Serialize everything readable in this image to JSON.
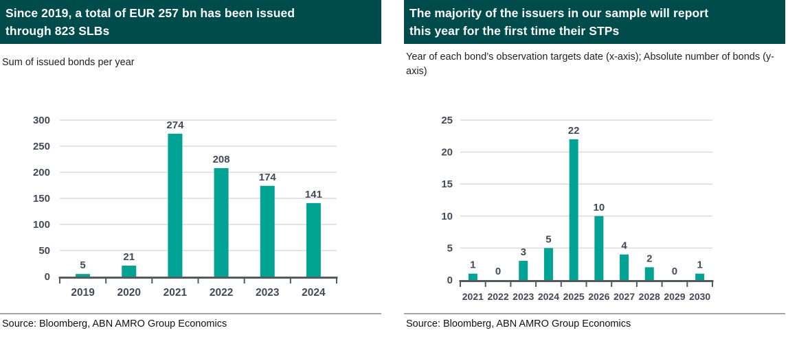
{
  "colors": {
    "header_bg": "#004C4C",
    "header_text": "#FFFFFF",
    "bar": "#00A394",
    "axis": "#55585C",
    "grid": "#DBDBDB",
    "tick_label": "#404A59",
    "body_text": "#1F1F1F",
    "divider": "#A6A6A6"
  },
  "chart_data": [
    {
      "type": "bar",
      "title": "Since 2019, a total of EUR 257 bn has been issued through 823 SLBs",
      "title_lines": [
        "Since 2019, a total of EUR 257 bn has been issued",
        "through 823 SLBs"
      ],
      "subtitle": "Sum of issued bonds per year",
      "categories": [
        "2019",
        "2020",
        "2021",
        "2022",
        "2023",
        "2024"
      ],
      "values": [
        5,
        21,
        274,
        208,
        174,
        141
      ],
      "xlabel": "",
      "ylabel": "",
      "ylim": [
        0,
        300
      ],
      "yticks": [
        0,
        50,
        100,
        150,
        200,
        250,
        300
      ],
      "grid": true,
      "legend": false,
      "source": "Source: Bloomberg, ABN AMRO Group Economics"
    },
    {
      "type": "bar",
      "title": "The majority of the issuers in our sample will report this year for the first time their STPs",
      "title_lines": [
        "The majority of the issuers in our sample will report",
        "this year for the first time their STPs"
      ],
      "subtitle": "Year of each bond’s observation targets date (x-axis); Absolute number of bonds (y-axis)",
      "categories": [
        "2021",
        "2022",
        "2023",
        "2024",
        "2025",
        "2026",
        "2027",
        "2028",
        "2029",
        "2030"
      ],
      "values": [
        1,
        0,
        3,
        5,
        22,
        10,
        4,
        2,
        0,
        1
      ],
      "xlabel": "",
      "ylabel": "",
      "ylim": [
        0,
        25
      ],
      "yticks": [
        0,
        5,
        10,
        15,
        20,
        25
      ],
      "grid": true,
      "legend": false,
      "source": "Source: Bloomberg, ABN AMRO Group Economics"
    }
  ]
}
